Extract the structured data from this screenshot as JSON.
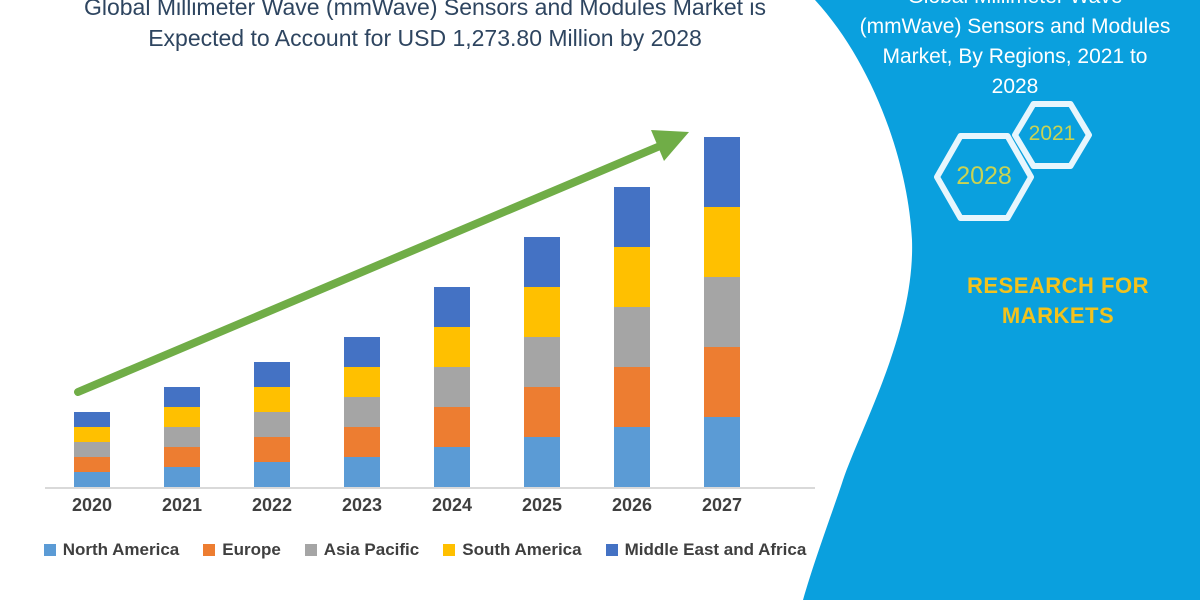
{
  "main_title": {
    "lines": [
      "Global Millimeter Wave (mmWave) Sensors and Modules Market is",
      "Expected to Account for USD 1,273.80 Million by 2028"
    ]
  },
  "chart_data": {
    "type": "bar",
    "stacked": true,
    "title": "Global Millimeter Wave (mmWave) Sensors and Modules Market is Expected to Account for USD 1,273.80 Million by 2028",
    "categories": [
      "2020",
      "2021",
      "2022",
      "2023",
      "2024",
      "2025",
      "2026",
      "2027"
    ],
    "series": [
      {
        "name": "North America",
        "color": "#5B9BD5",
        "values": [
          15,
          20,
          25,
          30,
          40,
          50,
          60,
          70
        ]
      },
      {
        "name": "Europe",
        "color": "#ED7D31",
        "values": [
          15,
          20,
          25,
          30,
          40,
          50,
          60,
          70
        ]
      },
      {
        "name": "Asia Pacific",
        "color": "#A5A5A5",
        "values": [
          15,
          20,
          25,
          30,
          40,
          50,
          60,
          70
        ]
      },
      {
        "name": "South America",
        "color": "#FFC000",
        "values": [
          15,
          20,
          25,
          30,
          40,
          50,
          60,
          70
        ]
      },
      {
        "name": "Middle East and Africa",
        "color": "#4472C4",
        "values": [
          15,
          20,
          25,
          30,
          40,
          50,
          60,
          70
        ]
      }
    ],
    "stack_totals": [
      75,
      100,
      125,
      150,
      200,
      250,
      300,
      350
    ],
    "value_units": "relative height, no y-axis shown",
    "xlabel": "",
    "ylabel": "",
    "grid": false,
    "y_axis_visible": false,
    "legend_position": "bottom",
    "annotations": [
      {
        "type": "trend-arrow",
        "color": "#70AD47",
        "direction": "up-right",
        "from_category": "2020",
        "to_category": "2027"
      }
    ]
  },
  "sidebar": {
    "title_lines": [
      "Global Millimeter Wave",
      "(mmWave) Sensors and Modules",
      "Market, By Regions, 2021 to",
      "2028"
    ],
    "hexagon_years": [
      "2028",
      "2021"
    ],
    "brand_lines": [
      "RESEARCH FOR",
      "MARKETS"
    ]
  },
  "colors": {
    "sidebar_bg": "#0AA0DE",
    "sidebar_title_text": "#FFFFFF",
    "title_text": "#2E4560",
    "axis_text": "#3F3F3F",
    "axis_line": "#D9D9D9",
    "hexagon_border": "#E7F6FD",
    "hexagon_year_text": "#C9D353",
    "brand_text": "#F2C21D",
    "arrow_green": "#70AD47"
  }
}
